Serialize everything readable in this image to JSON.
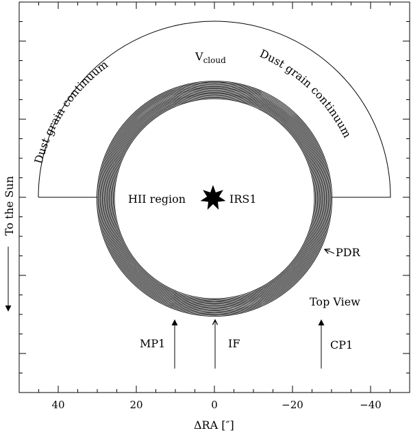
{
  "axis": {
    "xlabel": "ΔRA [″]",
    "ticks": [
      {
        "value": 40,
        "label": "40"
      },
      {
        "value": 20,
        "label": "20"
      },
      {
        "value": 0,
        "label": "0"
      },
      {
        "value": -20,
        "label": "−20"
      },
      {
        "value": -40,
        "label": "−40"
      }
    ],
    "xlim": [
      50,
      -50
    ]
  },
  "labels": {
    "v_cloud_main": "V",
    "v_cloud_sub": "cloud",
    "dust_left": "Dust grain continuum",
    "dust_right": "Dust grain continuum",
    "hii_region": "HII region",
    "irs1": "IRS1",
    "pdr": "PDR",
    "top_view": "Top View",
    "mp1": "MP1",
    "if": "IF",
    "cp1": "CP1",
    "to_the_sun": "To the Sun"
  },
  "colors": {
    "ink": "#000000",
    "background": "#ffffff"
  },
  "icons": {
    "star": "star-icon"
  }
}
